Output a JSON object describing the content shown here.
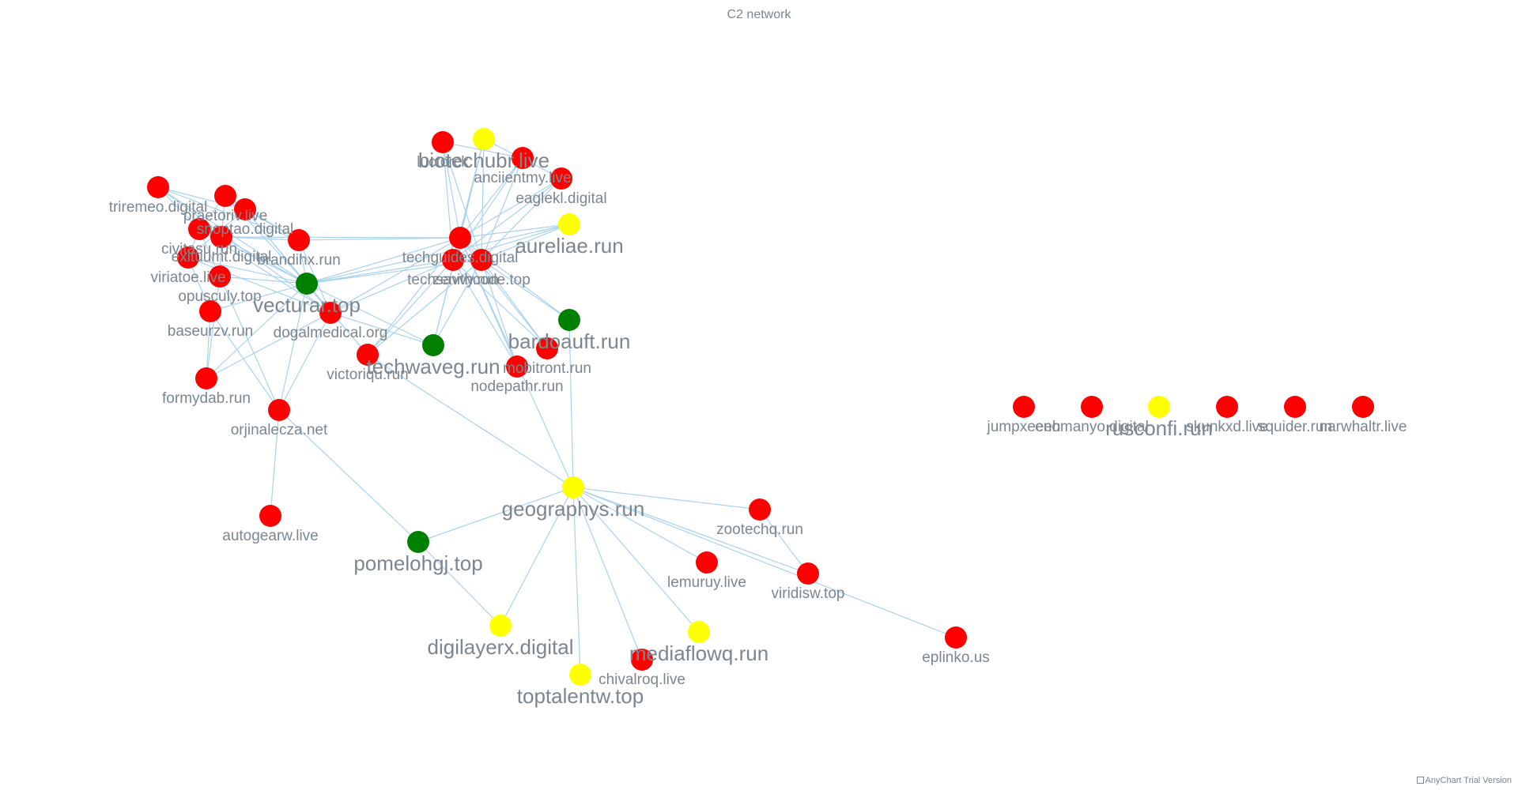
{
  "title": "C2 network",
  "credits": "AnyChart Trial Version",
  "colors": {
    "red": "#ff0000",
    "yellow": "#ffff00",
    "green": "#008000",
    "edge": "#a9d2ef",
    "label": "#7c868e"
  },
  "chart_data": {
    "type": "network",
    "nodes": [
      {
        "id": "triremeo.digital",
        "group": "red"
      },
      {
        "id": "praetoriv.live",
        "group": "red"
      },
      {
        "id": "snoptao.digital",
        "group": "red"
      },
      {
        "id": "civitasu.run",
        "group": "red"
      },
      {
        "id": "exituumt.digital",
        "group": "red"
      },
      {
        "id": "viriatoe.live",
        "group": "red"
      },
      {
        "id": "brandihx.run",
        "group": "red"
      },
      {
        "id": "opusculy.top",
        "group": "red"
      },
      {
        "id": "vecturar.top",
        "group": "green"
      },
      {
        "id": "baseurzv.run",
        "group": "red"
      },
      {
        "id": "dogalmedical.org",
        "group": "red"
      },
      {
        "id": "formydab.run",
        "group": "red"
      },
      {
        "id": "orjinalecza.net",
        "group": "red"
      },
      {
        "id": "victoriqu.run",
        "group": "red"
      },
      {
        "id": "techwaveg.run",
        "group": "green"
      },
      {
        "id": "autogearw.live",
        "group": "red"
      },
      {
        "id": "pomelohgj.top",
        "group": "green"
      },
      {
        "id": "luctorck",
        "group": "red"
      },
      {
        "id": "biotechubr.live",
        "group": "yellow"
      },
      {
        "id": "anciientmy.live",
        "group": "red"
      },
      {
        "id": "eaglekl.digital",
        "group": "red"
      },
      {
        "id": "aureliae.run",
        "group": "yellow"
      },
      {
        "id": "techguides.digital",
        "group": "red"
      },
      {
        "id": "techsavvy.run",
        "group": "red"
      },
      {
        "id": "zenithcode.top",
        "group": "red"
      },
      {
        "id": "bardoauft.run",
        "group": "green"
      },
      {
        "id": "mobitront.run",
        "group": "red"
      },
      {
        "id": "nodepathr.run",
        "group": "red"
      },
      {
        "id": "geographys.run",
        "group": "yellow"
      },
      {
        "id": "zootechq.run",
        "group": "red"
      },
      {
        "id": "lemuruy.live",
        "group": "red"
      },
      {
        "id": "viridisw.top",
        "group": "red"
      },
      {
        "id": "digilayerx.digital",
        "group": "yellow"
      },
      {
        "id": "mediaflowq.run",
        "group": "yellow"
      },
      {
        "id": "chivalroq.live",
        "group": "red"
      },
      {
        "id": "toptalentw.top",
        "group": "yellow"
      },
      {
        "id": "eplinko.us",
        "group": "red"
      },
      {
        "id": "jumpxeeeh",
        "group": "red"
      },
      {
        "id": "enomanyo.digital",
        "group": "red"
      },
      {
        "id": "rusconfi.run",
        "group": "yellow"
      },
      {
        "id": "skunkxd.live",
        "group": "red"
      },
      {
        "id": "squider.run",
        "group": "red"
      },
      {
        "id": "narwhaltr.live",
        "group": "red"
      }
    ],
    "edges": [
      [
        "triremeo.digital",
        "vecturar.top"
      ],
      [
        "triremeo.digital",
        "brandihx.run"
      ],
      [
        "triremeo.digital",
        "dogalmedical.org"
      ],
      [
        "triremeo.digital",
        "civitasu.run"
      ],
      [
        "triremeo.digital",
        "snoptao.digital"
      ],
      [
        "praetoriv.live",
        "vecturar.top"
      ],
      [
        "praetoriv.live",
        "brandihx.run"
      ],
      [
        "praetoriv.live",
        "exituumt.digital"
      ],
      [
        "praetoriv.live",
        "civitasu.run"
      ],
      [
        "snoptao.digital",
        "vecturar.top"
      ],
      [
        "snoptao.digital",
        "dogalmedical.org"
      ],
      [
        "snoptao.digital",
        "brandihx.run"
      ],
      [
        "snoptao.digital",
        "viriatoe.live"
      ],
      [
        "civitasu.run",
        "vecturar.top"
      ],
      [
        "civitasu.run",
        "dogalmedical.org"
      ],
      [
        "civitasu.run",
        "opusculy.top"
      ],
      [
        "civitasu.run",
        "viriatoe.live"
      ],
      [
        "exituumt.digital",
        "vecturar.top"
      ],
      [
        "exituumt.digital",
        "brandihx.run"
      ],
      [
        "exituumt.digital",
        "opusculy.top"
      ],
      [
        "exituumt.digital",
        "techguides.digital"
      ],
      [
        "viriatoe.live",
        "vecturar.top"
      ],
      [
        "viriatoe.live",
        "baseurzv.run"
      ],
      [
        "viriatoe.live",
        "dogalmedical.org"
      ],
      [
        "opusculy.top",
        "vecturar.top"
      ],
      [
        "opusculy.top",
        "formydab.run"
      ],
      [
        "opusculy.top",
        "orjinalecza.net"
      ],
      [
        "baseurzv.run",
        "vecturar.top"
      ],
      [
        "baseurzv.run",
        "formydab.run"
      ],
      [
        "baseurzv.run",
        "orjinalecza.net"
      ],
      [
        "formydab.run",
        "dogalmedical.org"
      ],
      [
        "formydab.run",
        "vecturar.top"
      ],
      [
        "orjinalecza.net",
        "vecturar.top"
      ],
      [
        "orjinalecza.net",
        "dogalmedical.org"
      ],
      [
        "orjinalecza.net",
        "autogearw.live"
      ],
      [
        "orjinalecza.net",
        "pomelohgj.top"
      ],
      [
        "brandihx.run",
        "vecturar.top"
      ],
      [
        "brandihx.run",
        "techguides.digital"
      ],
      [
        "brandihx.run",
        "dogalmedical.org"
      ],
      [
        "vecturar.top",
        "techguides.digital"
      ],
      [
        "vecturar.top",
        "techsavvy.run"
      ],
      [
        "vecturar.top",
        "zenithcode.top"
      ],
      [
        "vecturar.top",
        "aureliae.run"
      ],
      [
        "vecturar.top",
        "techwaveg.run"
      ],
      [
        "vecturar.top",
        "dogalmedical.org"
      ],
      [
        "vecturar.top",
        "victoriqu.run"
      ],
      [
        "dogalmedical.org",
        "techguides.digital"
      ],
      [
        "dogalmedical.org",
        "techsavvy.run"
      ],
      [
        "dogalmedical.org",
        "techwaveg.run"
      ],
      [
        "victoriqu.run",
        "techguides.digital"
      ],
      [
        "victoriqu.run",
        "techsavvy.run"
      ],
      [
        "victoriqu.run",
        "zenithcode.top"
      ],
      [
        "victoriqu.run",
        "geographys.run"
      ],
      [
        "victoriqu.run",
        "vecturar.top"
      ],
      [
        "techwaveg.run",
        "techguides.digital"
      ],
      [
        "techwaveg.run",
        "zenithcode.top"
      ],
      [
        "techwaveg.run",
        "biotechubr.live"
      ],
      [
        "luctorck",
        "techguides.digital"
      ],
      [
        "luctorck",
        "zenithcode.top"
      ],
      [
        "luctorck",
        "techsavvy.run"
      ],
      [
        "biotechubr.live",
        "techguides.digital"
      ],
      [
        "biotechubr.live",
        "techsavvy.run"
      ],
      [
        "biotechubr.live",
        "zenithcode.top"
      ],
      [
        "anciientmy.live",
        "techguides.digital"
      ],
      [
        "anciientmy.live",
        "zenithcode.top"
      ],
      [
        "anciientmy.live",
        "techsavvy.run"
      ],
      [
        "anciientmy.live",
        "luctorck"
      ],
      [
        "eaglekl.digital",
        "techguides.digital"
      ],
      [
        "eaglekl.digital",
        "zenithcode.top"
      ],
      [
        "eaglekl.digital",
        "techsavvy.run"
      ],
      [
        "eaglekl.digital",
        "biotechubr.live"
      ],
      [
        "aureliae.run",
        "techguides.digital"
      ],
      [
        "aureliae.run",
        "zenithcode.top"
      ],
      [
        "aureliae.run",
        "techsavvy.run"
      ],
      [
        "techguides.digital",
        "zenithcode.top"
      ],
      [
        "techguides.digital",
        "techsavvy.run"
      ],
      [
        "techguides.digital",
        "bardoauft.run"
      ],
      [
        "techguides.digital",
        "mobitront.run"
      ],
      [
        "techguides.digital",
        "nodepathr.run"
      ],
      [
        "techguides.digital",
        "geographys.run"
      ],
      [
        "techsavvy.run",
        "zenithcode.top"
      ],
      [
        "techsavvy.run",
        "mobitront.run"
      ],
      [
        "techsavvy.run",
        "nodepathr.run"
      ],
      [
        "zenithcode.top",
        "bardoauft.run"
      ],
      [
        "zenithcode.top",
        "mobitront.run"
      ],
      [
        "zenithcode.top",
        "nodepathr.run"
      ],
      [
        "bardoauft.run",
        "geographys.run"
      ],
      [
        "geographys.run",
        "pomelohgj.top"
      ],
      [
        "geographys.run",
        "zootechq.run"
      ],
      [
        "geographys.run",
        "lemuruy.live"
      ],
      [
        "geographys.run",
        "viridisw.top"
      ],
      [
        "geographys.run",
        "digilayerx.digital"
      ],
      [
        "geographys.run",
        "mediaflowq.run"
      ],
      [
        "geographys.run",
        "chivalroq.live"
      ],
      [
        "geographys.run",
        "toptalentw.top"
      ],
      [
        "geographys.run",
        "eplinko.us"
      ],
      [
        "zootechq.run",
        "viridisw.top"
      ],
      [
        "pomelohgj.top",
        "digilayerx.digital"
      ]
    ]
  }
}
